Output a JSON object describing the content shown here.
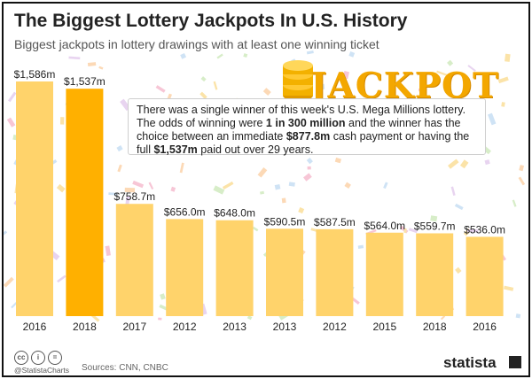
{
  "header": {
    "title": "The Biggest Lottery Jackpots In U.S. History",
    "subtitle": "Biggest jackpots in lottery drawings with at least one winning ticket"
  },
  "callout": {
    "text_1": "There was a single winner of this week's U.S. Mega Millions lottery. The odds of winning were ",
    "bold_1": "1 in 300 million",
    "text_2": " and the winner has the choice between an immediate ",
    "bold_2": "$877.8m",
    "text_3": " cash payment or having the full ",
    "bold_3": "$1,537m",
    "text_4": " paid out over 29 years."
  },
  "jackpot_word": "JACKPOT",
  "footer": {
    "handle": "@StatistaCharts",
    "sources": "Sources: CNN, CNBC",
    "logo": "statista"
  },
  "colors": {
    "bar": "#ffd36b",
    "bar_highlight": "#ffb000",
    "jackpot": "#f3a700"
  },
  "chart_data": {
    "type": "bar",
    "categories": [
      "2016",
      "2018",
      "2017",
      "2012",
      "2013",
      "2013",
      "2012",
      "2015",
      "2018",
      "2016"
    ],
    "values": [
      1586,
      1537,
      758.7,
      656.0,
      648.0,
      590.5,
      587.5,
      564.0,
      559.7,
      536.0
    ],
    "value_labels": [
      "$1,586m",
      "$1,537m",
      "$758.7m",
      "$656.0m",
      "$648.0m",
      "$590.5m",
      "$587.5m",
      "$564.0m",
      "$559.7m",
      "$536.0m"
    ],
    "highlight_index": 1,
    "ylim": [
      0,
      1700
    ],
    "grid": false,
    "title": "The Biggest Lottery Jackpots In U.S. History",
    "xlabel": "",
    "ylabel": ""
  }
}
